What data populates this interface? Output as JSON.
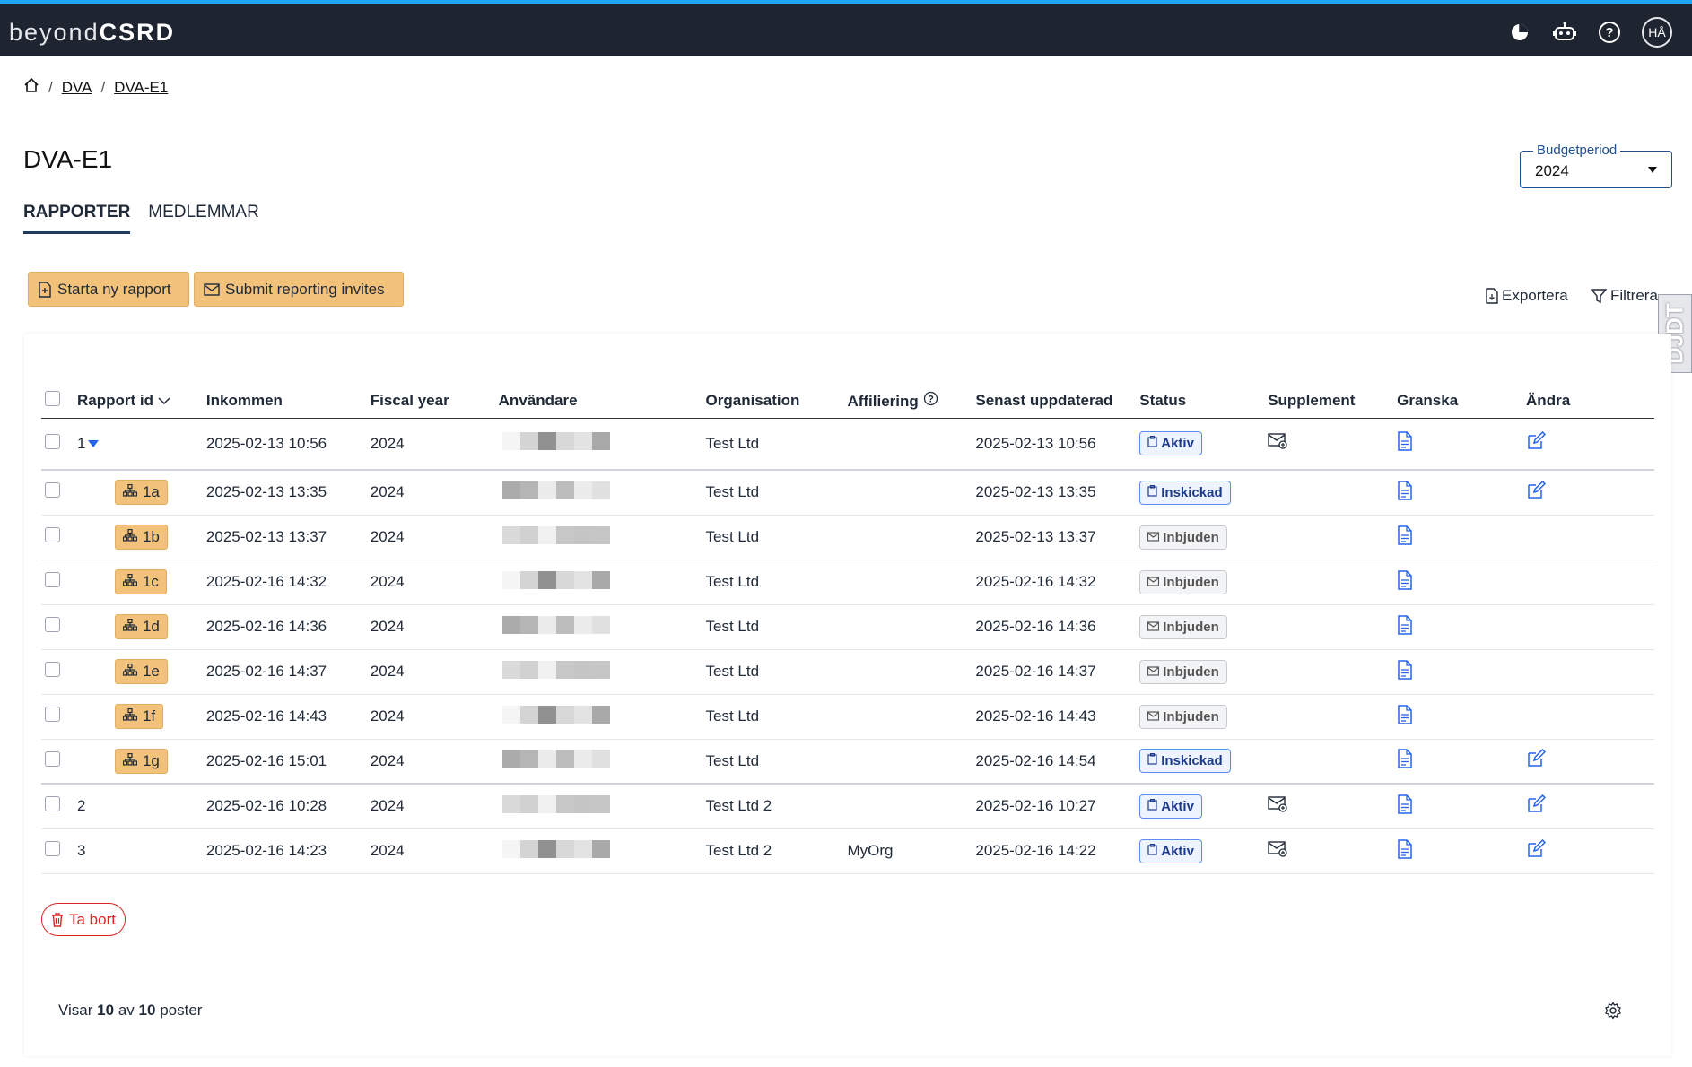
{
  "app": {
    "logo_light": "beyond",
    "logo_bold": "CSRD",
    "user_initials": "HÅ"
  },
  "topbar_icons": [
    "pie-chart-icon",
    "robot-icon",
    "help-icon"
  ],
  "breadcrumb": {
    "items": [
      "DVA",
      "DVA-E1"
    ]
  },
  "page": {
    "title": "DVA-E1"
  },
  "budget": {
    "label": "Budgetperiod",
    "value": "2024"
  },
  "tabs": [
    {
      "label": "RAPPORTER",
      "active": true
    },
    {
      "label": "MEDLEMMAR",
      "active": false
    }
  ],
  "actions": {
    "start_label": "Starta ny rapport",
    "submit_label": "Submit reporting invites",
    "export_label": "Exportera",
    "filter_label": "Filtrera"
  },
  "side_tab": "DJDT",
  "table": {
    "headers": {
      "id": "Rapport id",
      "received": "Inkommen",
      "fiscal": "Fiscal year",
      "user": "Användare",
      "org": "Organisation",
      "aff": "Affiliering",
      "updated": "Senast uppdaterad",
      "status": "Status",
      "supp": "Supplement",
      "review": "Granska",
      "edit": "Ändra"
    },
    "rows": [
      {
        "id": "1",
        "expanded": true,
        "received": "2025-02-13 10:56",
        "fiscal": "2024",
        "org": "Test Ltd",
        "aff": "",
        "updated": "2025-02-13 10:56",
        "status": "Aktiv",
        "status_type": "blue",
        "supplement": true,
        "edit": true
      },
      {
        "id": "1a",
        "sub": true,
        "received": "2025-02-13 13:35",
        "fiscal": "2024",
        "org": "Test Ltd",
        "aff": "",
        "updated": "2025-02-13 13:35",
        "status": "Inskickad",
        "status_type": "blue",
        "supplement": false,
        "edit": true
      },
      {
        "id": "1b",
        "sub": true,
        "received": "2025-02-13 13:37",
        "fiscal": "2024",
        "org": "Test Ltd",
        "aff": "",
        "updated": "2025-02-13 13:37",
        "status": "Inbjuden",
        "status_type": "gray",
        "supplement": false,
        "edit": false
      },
      {
        "id": "1c",
        "sub": true,
        "received": "2025-02-16 14:32",
        "fiscal": "2024",
        "org": "Test Ltd",
        "aff": "",
        "updated": "2025-02-16 14:32",
        "status": "Inbjuden",
        "status_type": "gray",
        "supplement": false,
        "edit": false
      },
      {
        "id": "1d",
        "sub": true,
        "received": "2025-02-16 14:36",
        "fiscal": "2024",
        "org": "Test Ltd",
        "aff": "",
        "updated": "2025-02-16 14:36",
        "status": "Inbjuden",
        "status_type": "gray",
        "supplement": false,
        "edit": false
      },
      {
        "id": "1e",
        "sub": true,
        "received": "2025-02-16 14:37",
        "fiscal": "2024",
        "org": "Test Ltd",
        "aff": "",
        "updated": "2025-02-16 14:37",
        "status": "Inbjuden",
        "status_type": "gray",
        "supplement": false,
        "edit": false
      },
      {
        "id": "1f",
        "sub": true,
        "received": "2025-02-16 14:43",
        "fiscal": "2024",
        "org": "Test Ltd",
        "aff": "",
        "updated": "2025-02-16 14:43",
        "status": "Inbjuden",
        "status_type": "gray",
        "supplement": false,
        "edit": false
      },
      {
        "id": "1g",
        "sub": true,
        "received": "2025-02-16 15:01",
        "fiscal": "2024",
        "org": "Test Ltd",
        "aff": "",
        "updated": "2025-02-16 14:54",
        "status": "Inskickad",
        "status_type": "blue",
        "supplement": false,
        "edit": true
      },
      {
        "id": "2",
        "received": "2025-02-16 10:28",
        "fiscal": "2024",
        "org": "Test Ltd 2",
        "aff": "",
        "updated": "2025-02-16 10:27",
        "status": "Aktiv",
        "status_type": "blue",
        "supplement": true,
        "edit": true
      },
      {
        "id": "3",
        "received": "2025-02-16 14:23",
        "fiscal": "2024",
        "org": "Test Ltd 2",
        "aff": "MyOrg",
        "updated": "2025-02-16 14:22",
        "status": "Aktiv",
        "status_type": "blue",
        "supplement": true,
        "edit": true
      }
    ]
  },
  "delete_label": "Ta bort",
  "footer": {
    "prefix": "Visar",
    "shown": "10",
    "middle": "av",
    "total": "10",
    "suffix": "poster"
  },
  "colors": {
    "topbar": "#1e2530",
    "accent_line": "#1ea7f5",
    "button_yellow": "#f2c27a",
    "link_blue": "#2563eb",
    "danger": "#dc2626"
  }
}
